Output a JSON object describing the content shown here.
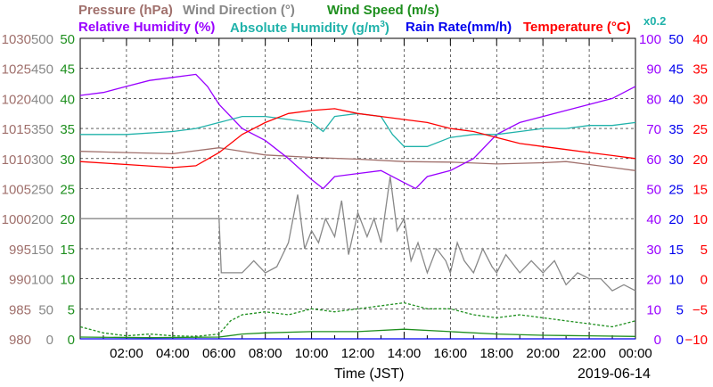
{
  "chart_data": {
    "type": "line",
    "x_range": [
      "00:00",
      "24:00"
    ],
    "xlabel": "Time (JST)",
    "date": "2019-06-14",
    "x_ticks": [
      "02:00",
      "04:00",
      "06:00",
      "08:00",
      "10:00",
      "12:00",
      "14:00",
      "16:00",
      "18:00",
      "20:00",
      "22:00",
      "00:00"
    ],
    "legend": {
      "pressure": "Pressure (hPa)",
      "wind_dir": "Wind Direction (°)",
      "wind_speed": "Wind Speed (m/s)",
      "rh": "Relative Humidity (%)",
      "ah_prefix": "Absolute Humidity (g/m",
      "ah_sup": "3",
      "ah_suffix": ")",
      "ah_scale": "x0.2",
      "rain": "Rain Rate(mm/h)",
      "temp": "Temperature (°C)"
    },
    "axes": {
      "pressure": {
        "ticks": [
          "1030",
          "1025",
          "1020",
          "1015",
          "1010",
          "1005",
          "1000",
          "995",
          "990",
          "985",
          "980"
        ],
        "range": [
          980,
          1030
        ],
        "color": "#a0706c"
      },
      "wind_dir": {
        "ticks": [
          "500",
          "450",
          "400",
          "350",
          "300",
          "250",
          "200",
          "150",
          "100",
          "50",
          "0"
        ],
        "range": [
          0,
          500
        ],
        "color": "#888888"
      },
      "wind_speed": {
        "ticks": [
          "50",
          "45",
          "40",
          "35",
          "30",
          "25",
          "20",
          "15",
          "10",
          "5",
          "0"
        ],
        "range": [
          0,
          50
        ],
        "color": "#1e8f1e"
      },
      "rh": {
        "ticks": [
          "100",
          "90",
          "80",
          "70",
          "60",
          "50",
          "40",
          "30",
          "20",
          "10",
          "0"
        ],
        "range": [
          0,
          100
        ],
        "color": "#9900ff"
      },
      "rain": {
        "ticks": [
          "50",
          "45",
          "40",
          "35",
          "30",
          "25",
          "20",
          "15",
          "10",
          "5",
          "0"
        ],
        "range": [
          0,
          50
        ],
        "color": "#0000ee"
      },
      "temp": {
        "ticks": [
          "40",
          "35",
          "30",
          "25",
          "20",
          "15",
          "10",
          "5",
          "0",
          "−5",
          "−10"
        ],
        "range": [
          -10,
          40
        ],
        "color": "#ff0000"
      }
    },
    "series": [
      {
        "name": "Pressure (hPa)",
        "axis": "pressure",
        "color": "#a0706c",
        "points": [
          [
            0,
            1011.2
          ],
          [
            2,
            1011.0
          ],
          [
            4,
            1010.8
          ],
          [
            6,
            1011.8
          ],
          [
            8,
            1010.6
          ],
          [
            10,
            1010.2
          ],
          [
            12,
            1009.9
          ],
          [
            14,
            1009.5
          ],
          [
            16,
            1009.4
          ],
          [
            18,
            1009.1
          ],
          [
            20,
            1009.3
          ],
          [
            21,
            1009.5
          ],
          [
            22,
            1009.0
          ],
          [
            23,
            1008.5
          ],
          [
            24,
            1008.0
          ]
        ]
      },
      {
        "name": "Wind Direction (°)",
        "axis": "wind_dir",
        "color": "#888888",
        "points": [
          [
            0,
            200
          ],
          [
            6,
            200
          ],
          [
            6.1,
            110
          ],
          [
            7,
            110
          ],
          [
            7.5,
            130
          ],
          [
            8,
            110
          ],
          [
            8.5,
            120
          ],
          [
            9,
            160
          ],
          [
            9.4,
            240
          ],
          [
            9.7,
            150
          ],
          [
            10,
            180
          ],
          [
            10.3,
            160
          ],
          [
            10.6,
            200
          ],
          [
            11,
            170
          ],
          [
            11.3,
            230
          ],
          [
            11.6,
            140
          ],
          [
            12,
            210
          ],
          [
            12.4,
            170
          ],
          [
            12.7,
            200
          ],
          [
            13,
            160
          ],
          [
            13.4,
            270
          ],
          [
            13.7,
            180
          ],
          [
            14,
            200
          ],
          [
            14.3,
            130
          ],
          [
            14.6,
            160
          ],
          [
            15,
            110
          ],
          [
            15.4,
            150
          ],
          [
            15.8,
            130
          ],
          [
            16,
            110
          ],
          [
            16.3,
            160
          ],
          [
            16.6,
            130
          ],
          [
            17,
            110
          ],
          [
            17.4,
            150
          ],
          [
            17.8,
            120
          ],
          [
            18,
            110
          ],
          [
            18.4,
            140
          ],
          [
            18.8,
            120
          ],
          [
            19,
            110
          ],
          [
            19.5,
            130
          ],
          [
            20,
            110
          ],
          [
            20.5,
            130
          ],
          [
            21,
            90
          ],
          [
            21.5,
            110
          ],
          [
            22,
            100
          ],
          [
            22.5,
            100
          ],
          [
            23,
            80
          ],
          [
            23.5,
            90
          ],
          [
            24,
            80
          ]
        ]
      },
      {
        "name": "Wind Speed (m/s)",
        "axis": "wind_speed",
        "color": "#1e8f1e",
        "points": [
          [
            0,
            0.3
          ],
          [
            3,
            0.2
          ],
          [
            6,
            0.3
          ],
          [
            7,
            0.8
          ],
          [
            8,
            1.0
          ],
          [
            10,
            1.2
          ],
          [
            12,
            1.2
          ],
          [
            14,
            1.6
          ],
          [
            16,
            1.2
          ],
          [
            18,
            0.8
          ],
          [
            20,
            0.6
          ],
          [
            22,
            0.5
          ],
          [
            24,
            0.4
          ]
        ]
      },
      {
        "name": "Wind Speed gust (m/s)",
        "axis": "wind_speed",
        "color": "#1e8f1e",
        "dashed": true,
        "points": [
          [
            0,
            2
          ],
          [
            1,
            1
          ],
          [
            2,
            0.5
          ],
          [
            3,
            0.8
          ],
          [
            4,
            0.5
          ],
          [
            5,
            0.4
          ],
          [
            6,
            0.8
          ],
          [
            6.5,
            3
          ],
          [
            7,
            4
          ],
          [
            8,
            4.5
          ],
          [
            9,
            4
          ],
          [
            10,
            5
          ],
          [
            11,
            4.5
          ],
          [
            12,
            5
          ],
          [
            13,
            5.5
          ],
          [
            14,
            6
          ],
          [
            15,
            5
          ],
          [
            16,
            5
          ],
          [
            17,
            4
          ],
          [
            18,
            3.5
          ],
          [
            19,
            4
          ],
          [
            20,
            3.5
          ],
          [
            21,
            3
          ],
          [
            22,
            2.5
          ],
          [
            23,
            2
          ],
          [
            24,
            3
          ]
        ]
      },
      {
        "name": "Relative Humidity (%)",
        "axis": "rh",
        "color": "#9900ff",
        "points": [
          [
            0,
            81
          ],
          [
            1,
            82
          ],
          [
            2,
            84
          ],
          [
            3,
            86
          ],
          [
            4,
            87
          ],
          [
            5,
            88
          ],
          [
            5.5,
            84
          ],
          [
            6,
            78
          ],
          [
            7,
            70
          ],
          [
            8,
            66
          ],
          [
            9,
            60
          ],
          [
            10,
            53
          ],
          [
            10.5,
            50
          ],
          [
            11,
            54
          ],
          [
            12,
            55
          ],
          [
            13,
            56
          ],
          [
            14,
            52
          ],
          [
            14.5,
            50
          ],
          [
            15,
            54
          ],
          [
            16,
            56
          ],
          [
            17,
            60
          ],
          [
            18,
            68
          ],
          [
            19,
            72
          ],
          [
            20,
            74
          ],
          [
            21,
            76
          ],
          [
            22,
            78
          ],
          [
            23,
            80
          ],
          [
            24,
            84
          ]
        ]
      },
      {
        "name": "Absolute Humidity (g/m3) x0.2",
        "axis": "rh",
        "color": "#20b2aa",
        "points": [
          [
            0,
            68
          ],
          [
            2,
            68
          ],
          [
            4,
            69
          ],
          [
            5,
            70
          ],
          [
            6,
            72
          ],
          [
            7,
            74
          ],
          [
            8,
            74
          ],
          [
            9,
            73
          ],
          [
            10,
            72
          ],
          [
            10.5,
            69
          ],
          [
            11,
            74
          ],
          [
            12,
            75
          ],
          [
            13,
            74
          ],
          [
            13.5,
            68
          ],
          [
            14,
            64
          ],
          [
            15,
            64
          ],
          [
            16,
            67
          ],
          [
            17,
            68
          ],
          [
            18,
            68
          ],
          [
            19,
            69
          ],
          [
            20,
            70
          ],
          [
            21,
            70
          ],
          [
            22,
            71
          ],
          [
            23,
            71
          ],
          [
            24,
            72
          ]
        ]
      },
      {
        "name": "Rain Rate(mm/h)",
        "axis": "rain",
        "color": "#0000ee",
        "points": [
          [
            0,
            0
          ],
          [
            24,
            0
          ]
        ]
      },
      {
        "name": "Temperature (°C)",
        "axis": "temp",
        "color": "#ff0000",
        "points": [
          [
            0,
            19.5
          ],
          [
            2,
            19
          ],
          [
            4,
            18.5
          ],
          [
            5,
            18.8
          ],
          [
            6,
            21
          ],
          [
            7,
            24
          ],
          [
            8,
            26
          ],
          [
            9,
            27.5
          ],
          [
            10,
            28
          ],
          [
            11,
            28.3
          ],
          [
            12,
            27.5
          ],
          [
            13,
            27
          ],
          [
            14,
            26.5
          ],
          [
            15,
            26
          ],
          [
            16,
            25
          ],
          [
            17,
            24.5
          ],
          [
            18,
            23.5
          ],
          [
            19,
            22.5
          ],
          [
            20,
            22
          ],
          [
            21,
            21.5
          ],
          [
            22,
            21
          ],
          [
            23,
            20.5
          ],
          [
            24,
            20
          ]
        ]
      }
    ]
  }
}
